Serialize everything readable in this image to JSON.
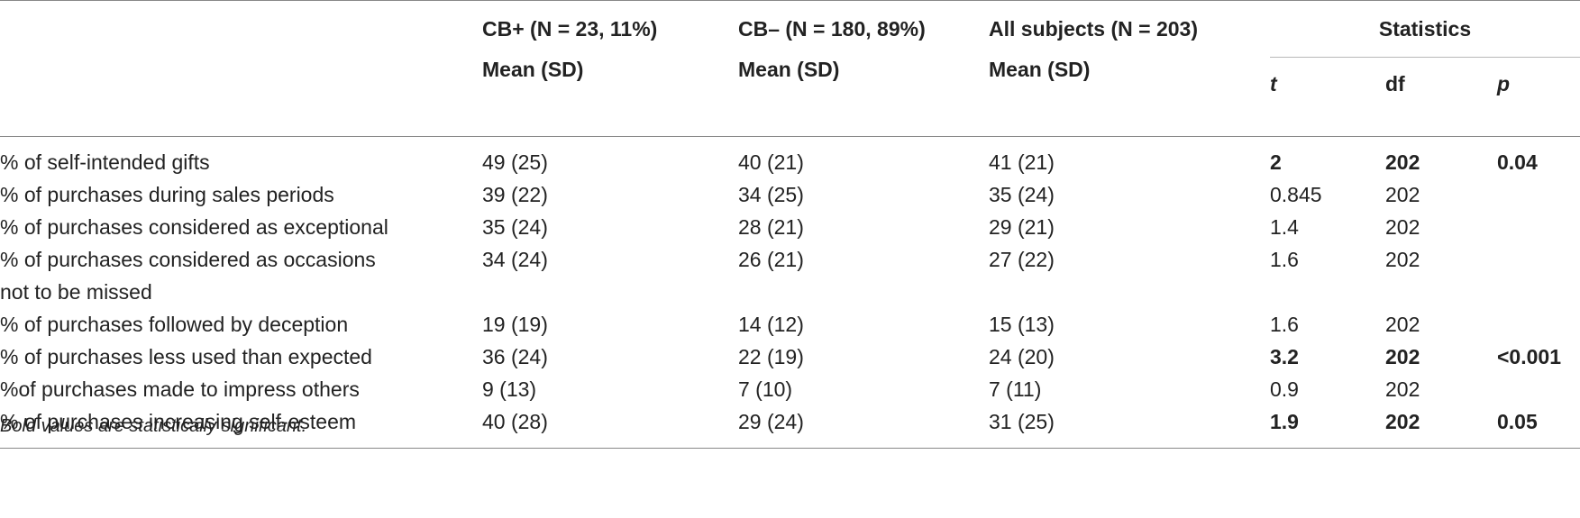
{
  "header": {
    "group1": "CB+ (N = 23, 11%)",
    "group2": "CB– (N = 180, 89%)",
    "group3": "All subjects (N = 203)",
    "stats": "Statistics",
    "mean_sd": "Mean (SD)",
    "t": "t",
    "df": "df",
    "p": "p"
  },
  "rows": [
    {
      "label": "% of self-intended gifts",
      "cb_plus": "49 (25)",
      "cb_minus": "40 (21)",
      "all": "41 (21)",
      "t": "2",
      "df": "202",
      "p": "0.04"
    },
    {
      "label": "% of purchases during sales periods",
      "cb_plus": "39 (22)",
      "cb_minus": "34 (25)",
      "all": "35 (24)",
      "t": "0.845",
      "df": "202",
      "p": ""
    },
    {
      "label": "% of purchases considered as exceptional",
      "cb_plus": "35 (24)",
      "cb_minus": "28 (21)",
      "all": "29 (21)",
      "t": "1.4",
      "df": "202",
      "p": ""
    },
    {
      "label": "% of purchases considered as occasions",
      "label2": "not to be missed",
      "cb_plus": "34 (24)",
      "cb_minus": "26 (21)",
      "all": "27 (22)",
      "t": "1.6",
      "df": "202",
      "p": ""
    },
    {
      "label": "% of purchases followed by deception",
      "cb_plus": "19 (19)",
      "cb_minus": "14 (12)",
      "all": "15 (13)",
      "t": "1.6",
      "df": "202",
      "p": ""
    },
    {
      "label": "% of purchases less used than expected",
      "cb_plus": "36 (24)",
      "cb_minus": "22 (19)",
      "all": "24 (20)",
      "t": "3.2",
      "df": "202",
      "p": "<0.001"
    },
    {
      "label": "%of purchases made to impress others",
      "cb_plus": "9 (13)",
      "cb_minus": "7 (10)",
      "all": "7 (11)",
      "t": "0.9",
      "df": "202",
      "p": ""
    },
    {
      "label": "% of purchases increasing self-esteem",
      "cb_plus": "40 (28)",
      "cb_minus": "29 (24)",
      "all": "31 (25)",
      "t": "1.9",
      "df": "202",
      "p": "0.05"
    }
  ],
  "footnote": "Bold values are statistically significant."
}
